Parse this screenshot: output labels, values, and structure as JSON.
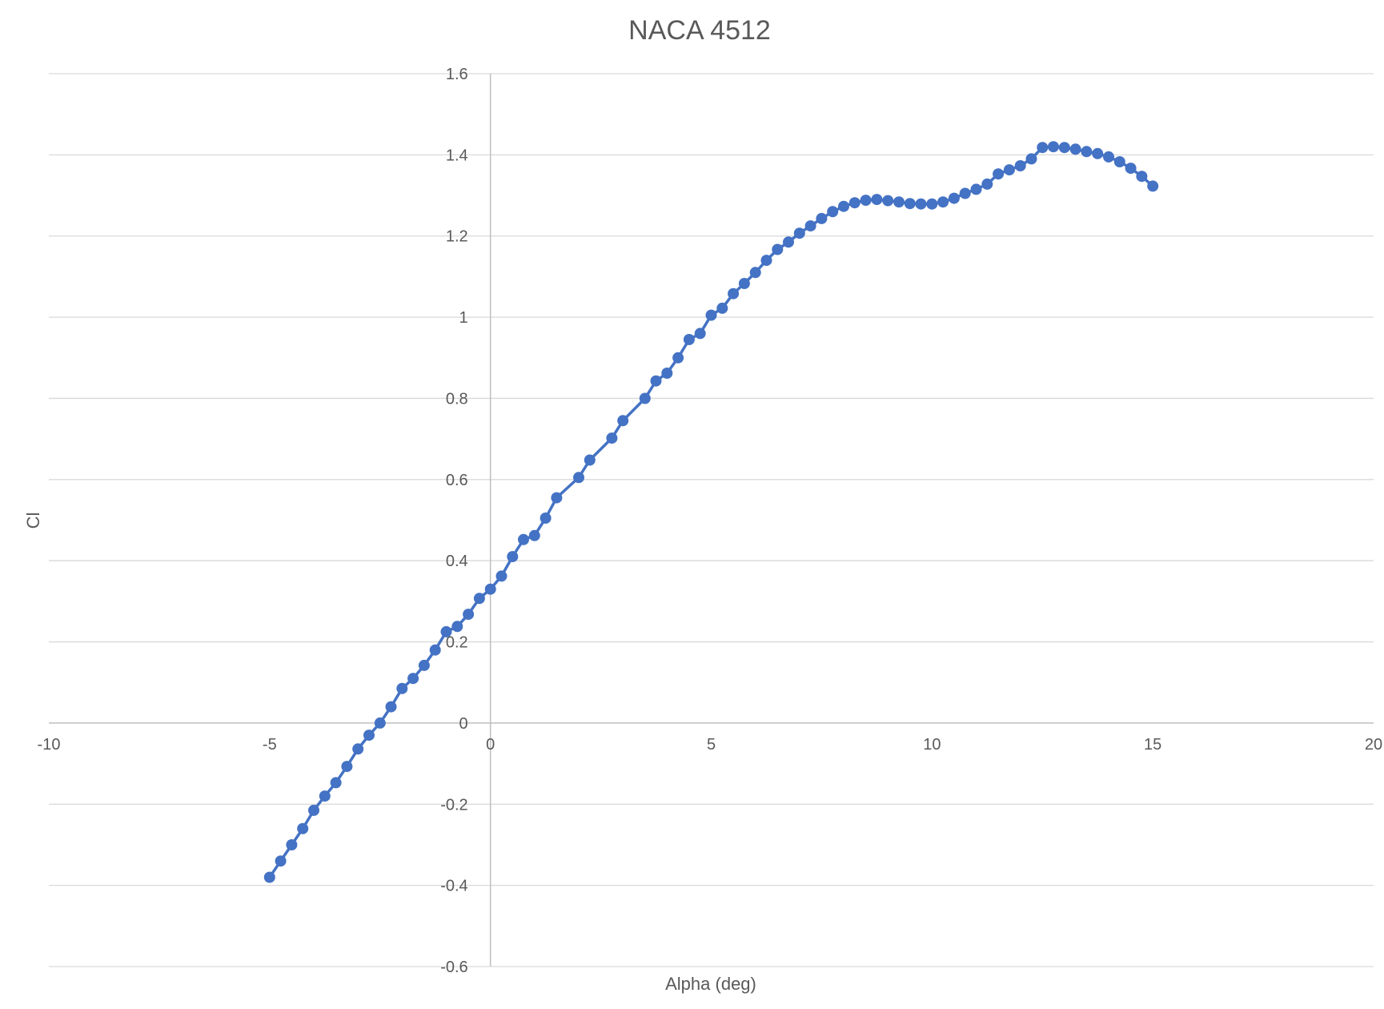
{
  "chart_data": {
    "type": "scatter",
    "title": "NACA 4512",
    "xlabel": "Alpha (deg)",
    "ylabel": "Cl",
    "xlim": [
      -10,
      20
    ],
    "ylim": [
      -0.6,
      1.6
    ],
    "x_ticks": [
      -10,
      -5,
      0,
      5,
      10,
      15,
      20
    ],
    "y_ticks": [
      -0.6,
      -0.4,
      -0.2,
      0,
      0.2,
      0.4,
      0.6,
      0.8,
      1,
      1.2,
      1.4,
      1.6
    ],
    "x_tick_labels": [
      "-10",
      "-5",
      "0",
      "5",
      "10",
      "15",
      "20"
    ],
    "y_tick_labels": [
      "-0.6",
      "-0.4",
      "-0.2",
      "0",
      "0.2",
      "0.4",
      "0.6",
      "0.8",
      "1",
      "1.2",
      "1.4",
      "1.6"
    ],
    "grid": "horizontal",
    "legend": "none",
    "color": "#4472c4",
    "series": [
      {
        "markers": true,
        "points": [
          [
            -5.0,
            -0.38
          ],
          [
            -4.75,
            -0.34
          ],
          [
            -4.5,
            -0.3
          ],
          [
            -4.25,
            -0.26
          ],
          [
            -4.0,
            -0.215
          ],
          [
            -3.75,
            -0.18
          ],
          [
            -3.5,
            -0.147
          ],
          [
            -3.25,
            -0.107
          ],
          [
            -3.0,
            -0.064
          ],
          [
            -2.75,
            -0.03
          ],
          [
            -2.5,
            0.0
          ],
          [
            -2.25,
            0.04
          ],
          [
            -2.0,
            0.085
          ],
          [
            -1.75,
            0.11
          ],
          [
            -1.5,
            0.142
          ],
          [
            -1.25,
            0.18
          ],
          [
            -1.0,
            0.225
          ],
          [
            -0.75,
            0.238
          ],
          [
            -0.5,
            0.268
          ],
          [
            -0.25,
            0.307
          ],
          [
            0.0,
            0.33
          ],
          [
            0.25,
            0.362
          ],
          [
            0.5,
            0.41
          ],
          [
            0.75,
            0.452
          ],
          [
            1.0,
            0.462
          ],
          [
            1.25,
            0.505
          ],
          [
            1.5,
            0.555
          ],
          [
            2.0,
            0.605
          ],
          [
            2.25,
            0.648
          ],
          [
            2.75,
            0.702
          ],
          [
            3.0,
            0.745
          ],
          [
            3.5,
            0.8
          ],
          [
            3.75,
            0.843
          ],
          [
            4.0,
            0.862
          ],
          [
            4.25,
            0.9
          ],
          [
            4.5,
            0.945
          ],
          [
            4.75,
            0.96
          ],
          [
            5.0,
            1.005
          ],
          [
            5.25,
            1.022
          ],
          [
            5.5,
            1.058
          ],
          [
            5.75,
            1.083
          ],
          [
            6.0,
            1.11
          ],
          [
            6.25,
            1.14
          ],
          [
            6.5,
            1.167
          ],
          [
            6.75,
            1.185
          ],
          [
            7.0,
            1.207
          ],
          [
            7.25,
            1.225
          ],
          [
            7.5,
            1.243
          ],
          [
            7.75,
            1.26
          ],
          [
            8.0,
            1.273
          ],
          [
            8.25,
            1.282
          ],
          [
            8.5,
            1.288
          ],
          [
            8.75,
            1.29
          ],
          [
            9.0,
            1.287
          ],
          [
            9.25,
            1.284
          ],
          [
            9.5,
            1.28
          ],
          [
            9.75,
            1.279
          ],
          [
            10.0,
            1.279
          ],
          [
            10.25,
            1.284
          ],
          [
            10.5,
            1.293
          ],
          [
            10.75,
            1.305
          ],
          [
            11.0,
            1.315
          ],
          [
            11.25,
            1.328
          ],
          [
            11.5,
            1.353
          ],
          [
            11.75,
            1.363
          ],
          [
            12.0,
            1.373
          ],
          [
            12.25,
            1.39
          ],
          [
            12.5,
            1.418
          ],
          [
            12.75,
            1.42
          ],
          [
            13.0,
            1.418
          ],
          [
            13.25,
            1.414
          ],
          [
            13.5,
            1.408
          ],
          [
            13.75,
            1.403
          ],
          [
            14.0,
            1.395
          ],
          [
            14.25,
            1.383
          ],
          [
            14.5,
            1.367
          ],
          [
            14.75,
            1.347
          ],
          [
            15.0,
            1.323
          ]
        ]
      }
    ]
  }
}
